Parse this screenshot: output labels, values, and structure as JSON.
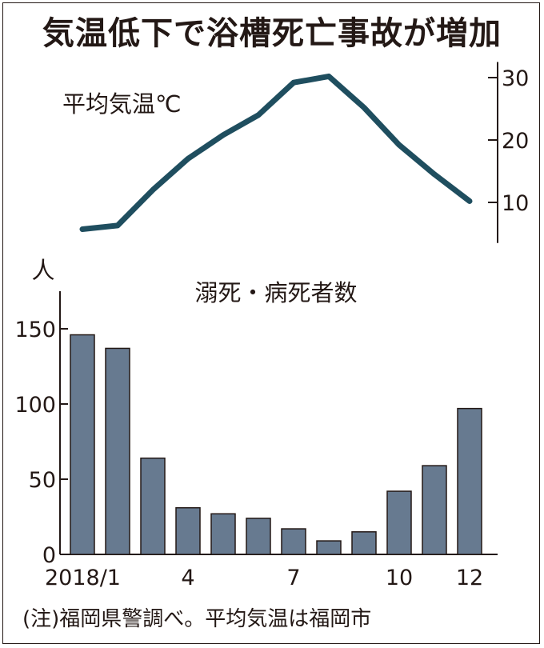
{
  "title": "気温低下で浴槽死亡事故が増加",
  "note": "(注)福岡県警調べ。平均気温は福岡市",
  "chart_data": [
    {
      "type": "line",
      "title": "平均気温℃",
      "x": [
        1,
        2,
        3,
        4,
        5,
        6,
        7,
        8,
        9,
        10,
        11,
        12
      ],
      "values": [
        5.7,
        6.3,
        12.0,
        17.0,
        20.8,
        24.0,
        29.2,
        30.2,
        25.2,
        19.2,
        14.5,
        10.2
      ],
      "ylim": [
        3.5,
        32.5
      ],
      "yticks": [
        10,
        20,
        30
      ],
      "grid": false,
      "line_color": "#1f4e5f"
    },
    {
      "type": "bar",
      "title": "溺死・病死者数",
      "ylabel": "人",
      "categories": [
        1,
        2,
        3,
        4,
        5,
        6,
        7,
        8,
        9,
        10,
        11,
        12
      ],
      "values": [
        146,
        137,
        64,
        31,
        27,
        24,
        17,
        9,
        15,
        42,
        59,
        97
      ],
      "ylim": [
        0,
        175
      ],
      "yticks": [
        0,
        50,
        100,
        150
      ],
      "xtick_labels": [
        {
          "x": 1,
          "label": "2018/1"
        },
        {
          "x": 4,
          "label": "4"
        },
        {
          "x": 7,
          "label": "7"
        },
        {
          "x": 10,
          "label": "10"
        },
        {
          "x": 12,
          "label": "12"
        }
      ],
      "grid": false,
      "bar_color": "#677a90"
    }
  ]
}
